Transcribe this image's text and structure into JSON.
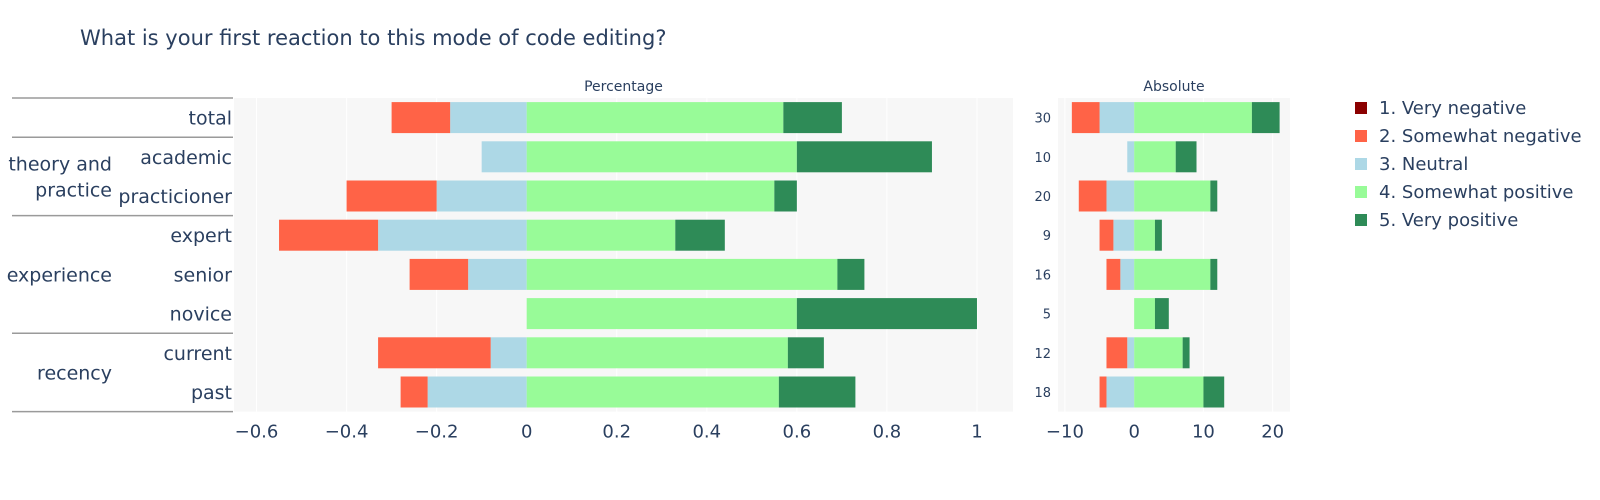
{
  "title": "What is your first reaction to this mode of code editing?",
  "legend": [
    {
      "label": "1. Very negative",
      "color": "#8b0000"
    },
    {
      "label": "2. Somewhat negative",
      "color": "#ff6347"
    },
    {
      "label": "3. Neutral",
      "color": "#add8e6"
    },
    {
      "label": "4. Somewhat positive",
      "color": "#98fb98"
    },
    {
      "label": "5. Very positive",
      "color": "#2e8b57"
    }
  ],
  "chart_data": [
    {
      "type": "bar",
      "orientation": "horizontal-diverging",
      "subtitle": "Percentage",
      "xlim": [
        -0.65,
        1.08
      ],
      "xticks": [
        -0.6,
        -0.4,
        -0.2,
        0,
        0.2,
        0.4,
        0.6,
        0.8,
        1
      ],
      "xtick_labels": [
        "−0.6",
        "−0.4",
        "−0.2",
        "0",
        "0.2",
        "0.4",
        "0.6",
        "0.8",
        "1"
      ],
      "grid": true,
      "categories": [
        "total",
        "academic",
        "practicioner",
        "expert",
        "senior",
        "novice",
        "current",
        "past"
      ],
      "groups": [
        {
          "label": "",
          "rows": [
            "total"
          ]
        },
        {
          "label": "theory and\npractice",
          "rows": [
            "academic",
            "practicioner"
          ]
        },
        {
          "label": "experience",
          "rows": [
            "expert",
            "senior",
            "novice"
          ]
        },
        {
          "label": "recency",
          "rows": [
            "current",
            "past"
          ]
        }
      ],
      "series": [
        {
          "name": "1. Very negative",
          "values": [
            0,
            0,
            0,
            0,
            0,
            0,
            0,
            0
          ]
        },
        {
          "name": "2. Somewhat negative",
          "values": [
            -0.13,
            0,
            -0.2,
            -0.22,
            -0.13,
            0,
            -0.25,
            -0.06
          ]
        },
        {
          "name": "3. Neutral",
          "values": [
            -0.17,
            -0.1,
            -0.2,
            -0.33,
            -0.13,
            0,
            -0.08,
            -0.22
          ]
        },
        {
          "name": "4. Somewhat positive",
          "values": [
            0.57,
            0.6,
            0.55,
            0.33,
            0.69,
            0.6,
            0.58,
            0.56
          ]
        },
        {
          "name": "5. Very positive",
          "values": [
            0.13,
            0.3,
            0.05,
            0.11,
            0.06,
            0.4,
            0.08,
            0.17
          ]
        }
      ]
    },
    {
      "type": "bar",
      "orientation": "horizontal-diverging",
      "subtitle": "Absolute",
      "xlim": [
        -11,
        22.5
      ],
      "xticks": [
        -10,
        0,
        10,
        20
      ],
      "xtick_labels": [
        "−10",
        "0",
        "10",
        "20"
      ],
      "grid": true,
      "totals": [
        "30",
        "10",
        "20",
        "9",
        "16",
        "5",
        "12",
        "18"
      ],
      "series": [
        {
          "name": "1. Very negative",
          "values": [
            0,
            0,
            0,
            0,
            0,
            0,
            0,
            0
          ]
        },
        {
          "name": "2. Somewhat negative",
          "values": [
            -4,
            0,
            -4,
            -2,
            -2,
            0,
            -3,
            -1
          ]
        },
        {
          "name": "3. Neutral",
          "values": [
            -5,
            -1,
            -4,
            -3,
            -2,
            0,
            -1,
            -4
          ]
        },
        {
          "name": "4. Somewhat positive",
          "values": [
            17,
            6,
            11,
            3,
            11,
            3,
            7,
            10
          ]
        },
        {
          "name": "5. Very positive",
          "values": [
            4,
            3,
            1,
            1,
            1,
            2,
            1,
            3
          ]
        }
      ]
    }
  ]
}
